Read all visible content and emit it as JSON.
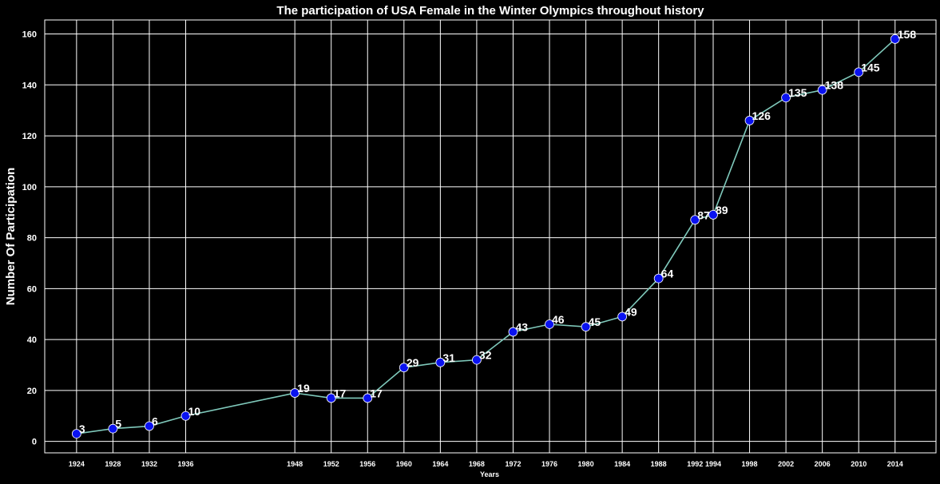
{
  "chart_data": {
    "type": "line",
    "title": "The participation of USA Female in the Winter Olympics throughout history",
    "xlabel": "Years",
    "ylabel": "Number Of Participation",
    "x": [
      1924,
      1928,
      1932,
      1936,
      1948,
      1952,
      1956,
      1960,
      1964,
      1968,
      1972,
      1976,
      1980,
      1984,
      1988,
      1992,
      1994,
      1998,
      2002,
      2006,
      2010,
      2014
    ],
    "values": [
      3,
      5,
      6,
      10,
      19,
      17,
      17,
      29,
      31,
      32,
      43,
      46,
      45,
      49,
      64,
      87,
      89,
      126,
      135,
      138,
      145,
      158
    ],
    "yticks": [
      0,
      20,
      40,
      60,
      80,
      100,
      120,
      140,
      160
    ],
    "xlim": [
      1920.5,
      2018.5
    ],
    "ylim": [
      -4.5,
      165.5
    ],
    "grid": true,
    "colors": {
      "background": "#000000",
      "line": "#7fc9bb",
      "marker": "#0a12f0",
      "text": "#ffffff",
      "grid": "#ffffff"
    }
  }
}
